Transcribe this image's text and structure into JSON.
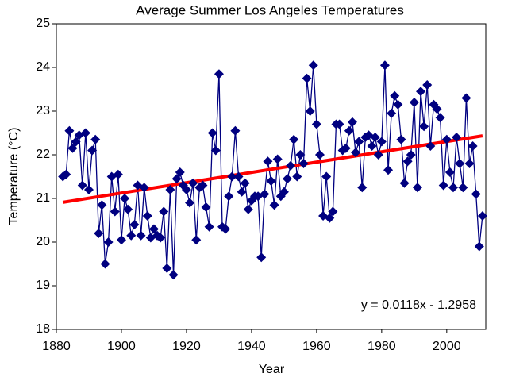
{
  "chart_data": {
    "type": "scatter",
    "title": "Average Summer  Los Angeles  Temperatures",
    "x_label": "Year",
    "y_label": "Temperature  (°C)",
    "x": [
      1882,
      1883,
      1884,
      1885,
      1886,
      1887,
      1888,
      1889,
      1890,
      1891,
      1892,
      1893,
      1894,
      1895,
      1896,
      1897,
      1898,
      1899,
      1900,
      1901,
      1902,
      1903,
      1904,
      1905,
      1906,
      1907,
      1908,
      1909,
      1910,
      1911,
      1912,
      1913,
      1914,
      1915,
      1916,
      1917,
      1918,
      1919,
      1920,
      1921,
      1922,
      1923,
      1924,
      1925,
      1926,
      1927,
      1928,
      1929,
      1930,
      1931,
      1932,
      1933,
      1934,
      1935,
      1936,
      1937,
      1938,
      1939,
      1940,
      1941,
      1942,
      1943,
      1944,
      1945,
      1946,
      1947,
      1948,
      1949,
      1950,
      1951,
      1952,
      1953,
      1954,
      1955,
      1956,
      1957,
      1958,
      1959,
      1960,
      1961,
      1962,
      1963,
      1964,
      1965,
      1966,
      1967,
      1968,
      1969,
      1970,
      1971,
      1972,
      1973,
      1974,
      1975,
      1976,
      1977,
      1978,
      1979,
      1980,
      1981,
      1982,
      1983,
      1984,
      1985,
      1986,
      1987,
      1988,
      1989,
      1990,
      1991,
      1992,
      1993,
      1994,
      1995,
      1996,
      1997,
      1998,
      1999,
      2000,
      2001,
      2002,
      2003,
      2004,
      2005,
      2006,
      2007,
      2008,
      2009,
      2010,
      2011
    ],
    "values": [
      21.5,
      21.55,
      22.55,
      22.15,
      22.3,
      22.45,
      21.3,
      22.5,
      21.2,
      22.1,
      22.35,
      20.2,
      20.85,
      19.5,
      20.0,
      21.5,
      20.7,
      21.55,
      20.05,
      21.0,
      20.75,
      20.15,
      20.4,
      21.3,
      20.15,
      21.25,
      20.6,
      20.1,
      20.3,
      20.15,
      20.1,
      20.7,
      19.4,
      21.2,
      19.25,
      21.45,
      21.6,
      21.3,
      21.2,
      20.9,
      21.35,
      20.05,
      21.25,
      21.3,
      20.8,
      20.35,
      22.5,
      22.1,
      23.85,
      20.35,
      20.3,
      21.05,
      21.5,
      22.55,
      21.5,
      21.15,
      21.35,
      20.75,
      20.95,
      21.05,
      21.05,
      19.65,
      21.1,
      21.85,
      21.4,
      20.85,
      21.9,
      21.05,
      21.15,
      21.45,
      21.75,
      22.35,
      21.5,
      22.0,
      21.8,
      23.75,
      23.0,
      24.05,
      22.7,
      22.0,
      20.6,
      21.5,
      20.55,
      20.7,
      22.7,
      22.7,
      22.1,
      22.15,
      22.55,
      22.75,
      22.05,
      22.3,
      21.25,
      22.4,
      22.45,
      22.2,
      22.4,
      22.0,
      22.3,
      24.05,
      21.65,
      22.95,
      23.35,
      23.15,
      22.35,
      21.35,
      21.85,
      22.0,
      23.2,
      21.25,
      23.45,
      22.65,
      23.6,
      22.2,
      23.15,
      23.05,
      22.85,
      21.3,
      22.35,
      21.6,
      21.25,
      22.4,
      21.8,
      21.25,
      23.3,
      21.8,
      22.2,
      21.1,
      19.9,
      20.6
    ],
    "color": "#000080",
    "xlim": [
      1880,
      2012
    ],
    "xticks": [
      1880,
      1900,
      1920,
      1940,
      1960,
      1980,
      2000
    ],
    "ylim": [
      18,
      25
    ],
    "yticks": [
      18,
      19,
      20,
      21,
      22,
      23,
      24,
      25
    ],
    "trendline": {
      "slope": 0.0118,
      "intercept": -1.2958,
      "color": "#ff0000",
      "label": "y = 0.0118x - 1.2958"
    }
  }
}
